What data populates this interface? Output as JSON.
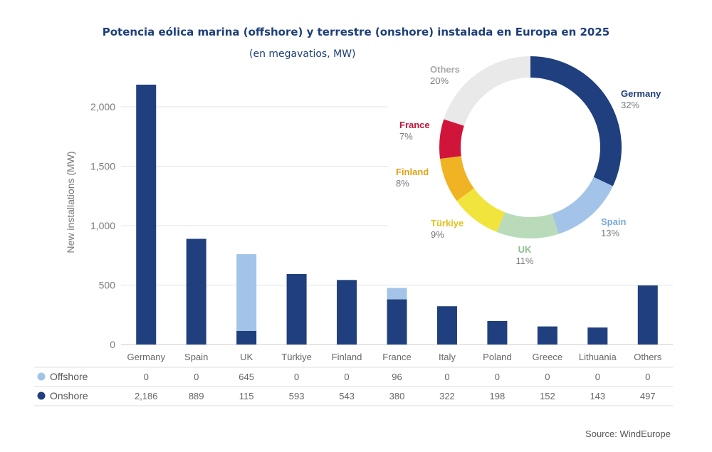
{
  "title": "Potencia eólica marina (offshore) y terrestre (onshore) instalada en Europa en 2025",
  "subtitle": "(en megavatios, MW)",
  "source": "Source: WindEurope",
  "chart_data": [
    {
      "type": "bar",
      "stacked": true,
      "categories": [
        "Germany",
        "Spain",
        "UK",
        "Türkiye",
        "Finland",
        "France",
        "Italy",
        "Poland",
        "Greece",
        "Lithuania",
        "Others"
      ],
      "series": [
        {
          "name": "Offshore",
          "color": "#a3c4e8",
          "values": [
            0,
            0,
            645,
            0,
            0,
            96,
            0,
            0,
            0,
            0,
            0
          ],
          "labels": [
            "0",
            "0",
            "645",
            "0",
            "0",
            "96",
            "0",
            "0",
            "0",
            "0",
            "0"
          ]
        },
        {
          "name": "Onshore",
          "color": "#1f3f7e",
          "values": [
            2186,
            889,
            115,
            593,
            543,
            380,
            322,
            198,
            152,
            143,
            497
          ],
          "labels": [
            "2,186",
            "889",
            "115",
            "593",
            "543",
            "380",
            "322",
            "198",
            "152",
            "143",
            "497"
          ]
        }
      ],
      "ylabel": "New installations (MW)",
      "ylim": [
        0,
        2200
      ],
      "yticks": [
        0,
        500,
        1000,
        1500,
        2000
      ],
      "ytick_labels": [
        "0",
        "500",
        "1,000",
        "1,500",
        "2,000"
      ],
      "grid": true
    },
    {
      "type": "pie",
      "donut": true,
      "slices": [
        {
          "label": "Germany",
          "pct_label": "32%",
          "value": 32,
          "color": "#1f3f7e",
          "label_color": "#1f3f7e"
        },
        {
          "label": "Spain",
          "pct_label": "13%",
          "value": 13,
          "color": "#a3c4e8",
          "label_color": "#7aa8dd"
        },
        {
          "label": "UK",
          "pct_label": "11%",
          "value": 11,
          "color": "#b9dbb9",
          "label_color": "#8fbf8f"
        },
        {
          "label": "Türkiye",
          "pct_label": "9%",
          "value": 9,
          "color": "#f1e43c",
          "label_color": "#e1c21c"
        },
        {
          "label": "Finland",
          "pct_label": "8%",
          "value": 8,
          "color": "#f0b323",
          "label_color": "#e0a315"
        },
        {
          "label": "France",
          "pct_label": "7%",
          "value": 7,
          "color": "#d0143a",
          "label_color": "#c0143a"
        },
        {
          "label": "Others",
          "pct_label": "20%",
          "value": 20,
          "color": "#e9e9e9",
          "label_color": "#a9a9a9"
        }
      ]
    }
  ]
}
